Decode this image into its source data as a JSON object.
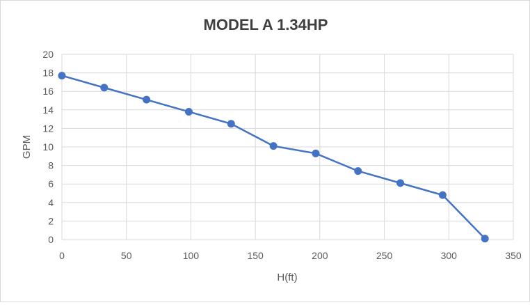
{
  "chart_data": {
    "type": "line",
    "title": "MODEL A 1.34HP",
    "xlabel": "H(ft)",
    "ylabel": "GPM",
    "xlim": [
      0,
      350
    ],
    "ylim": [
      0,
      20
    ],
    "xticks": [
      0,
      50,
      100,
      150,
      200,
      250,
      300,
      350
    ],
    "yticks": [
      0,
      2,
      4,
      6,
      8,
      10,
      12,
      14,
      16,
      18,
      20
    ],
    "grid": true,
    "markers": true,
    "color": "#4472c4",
    "x": [
      0,
      32.8,
      65.6,
      98.4,
      131.2,
      164,
      196.8,
      229.6,
      262.4,
      295.2,
      328
    ],
    "y": [
      17.7,
      16.4,
      15.1,
      13.8,
      12.5,
      10.1,
      9.3,
      7.4,
      6.1,
      4.8,
      0.1
    ]
  }
}
